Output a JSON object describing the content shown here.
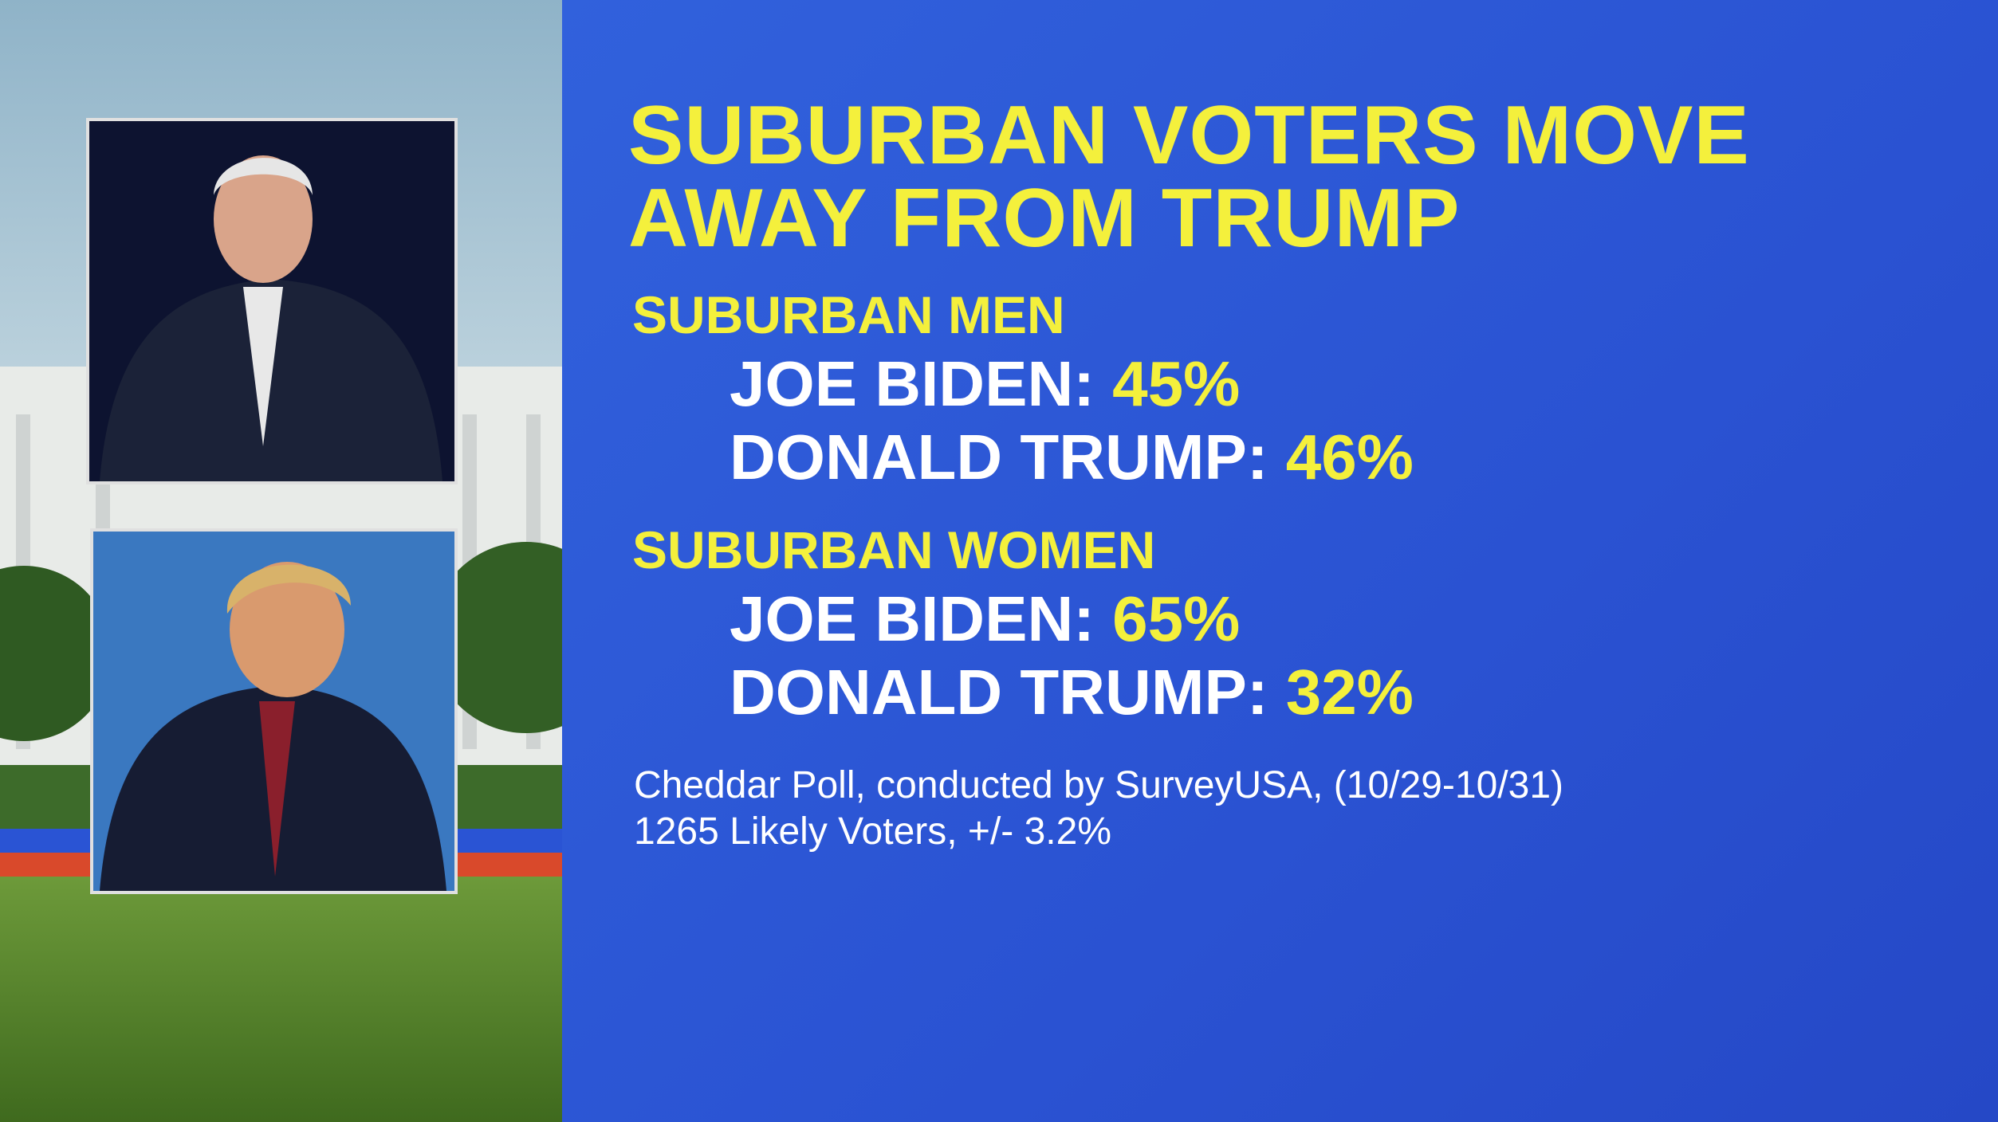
{
  "header": {
    "title_lines": [
      "SUBURBAN VOTERS MOVE",
      "AWAY FROM TRUMP"
    ]
  },
  "groups": [
    {
      "name": "SUBURBAN MEN",
      "rows": [
        {
          "label": "JOE BIDEN:",
          "value": "45%"
        },
        {
          "label": "DONALD TRUMP:",
          "value": "46%"
        }
      ]
    },
    {
      "name": "SUBURBAN WOMEN",
      "rows": [
        {
          "label": "JOE BIDEN:",
          "value": "65%"
        },
        {
          "label": "DONALD TRUMP:",
          "value": "32%"
        }
      ]
    }
  ],
  "source": [
    "Cheddar Poll, conducted by SurveyUSA, (10/29-10/31)",
    "1265 Likely Voters, +/- 3.2%"
  ]
}
